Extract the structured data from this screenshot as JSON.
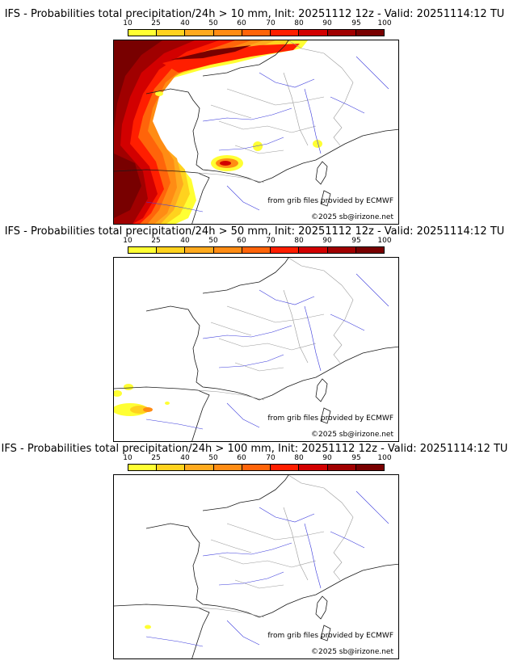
{
  "colors": {
    "bins": [
      "#ffff33",
      "#ffd21e",
      "#ffaa1e",
      "#ff8c14",
      "#ff640a",
      "#ff1e00",
      "#d20000",
      "#a00000",
      "#780000"
    ],
    "coast": "#1a1a1a",
    "border": "#9a9a9a",
    "river": "#3c3cdc"
  },
  "scale": {
    "ticks": [
      "10",
      "25",
      "40",
      "50",
      "60",
      "70",
      "80",
      "90",
      "95",
      "100"
    ]
  },
  "panels": [
    {
      "title": "IFS - Probabilities total precipitation/24h > 10 mm, Init: 20251112 12z - Valid: 20251114:12 TU",
      "provider_credit": "from grib files provided by ECMWF",
      "copyright": "©2025 sb@irizone.net"
    },
    {
      "title": "IFS - Probabilities total precipitation/24h > 50 mm, Init: 20251112 12z - Valid: 20251114:12 TU",
      "provider_credit": "from grib files provided by ECMWF",
      "copyright": "©2025 sb@irizone.net"
    },
    {
      "title": "IFS - Probabilities total precipitation/24h > 100 mm, Init: 20251112 12z - Valid: 20251114:12 TU",
      "provider_credit": "from grib files provided by ECMWF",
      "copyright": "©2025 sb@irizone.net"
    }
  ]
}
